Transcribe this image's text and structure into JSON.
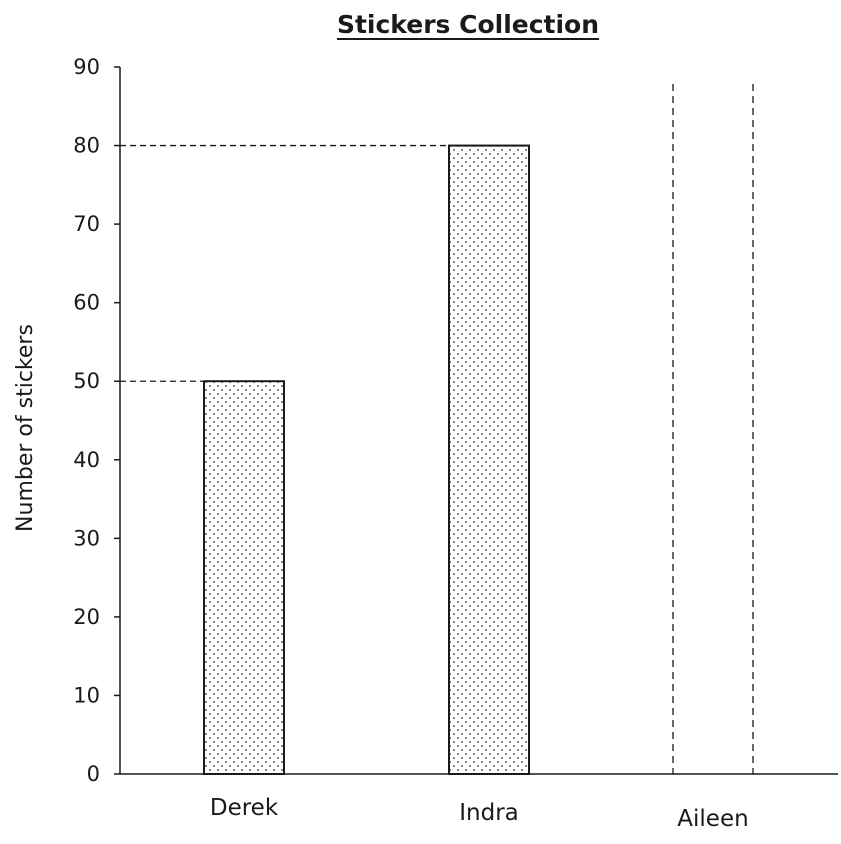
{
  "chart_data": {
    "type": "bar",
    "title": "Stickers Collection",
    "xlabel": "",
    "ylabel": "Number of stickers",
    "categories": [
      "Derek",
      "Indra",
      "Aileen"
    ],
    "values": [
      50,
      80,
      null
    ],
    "ylim": [
      0,
      90
    ],
    "yticks": [
      0,
      10,
      20,
      30,
      40,
      50,
      60,
      70,
      80,
      90
    ],
    "ytick_labels": [
      "0",
      "10",
      "20",
      "30",
      "40",
      "50",
      "60",
      "70",
      "80",
      "90"
    ],
    "bar_fill": "dotted",
    "incomplete_bar": "Aileen",
    "reference_lines": [
      50,
      80
    ],
    "grid": false,
    "colors": {
      "ink": "#1a1a1a",
      "dots": "#555555",
      "background": "#ffffff"
    }
  }
}
